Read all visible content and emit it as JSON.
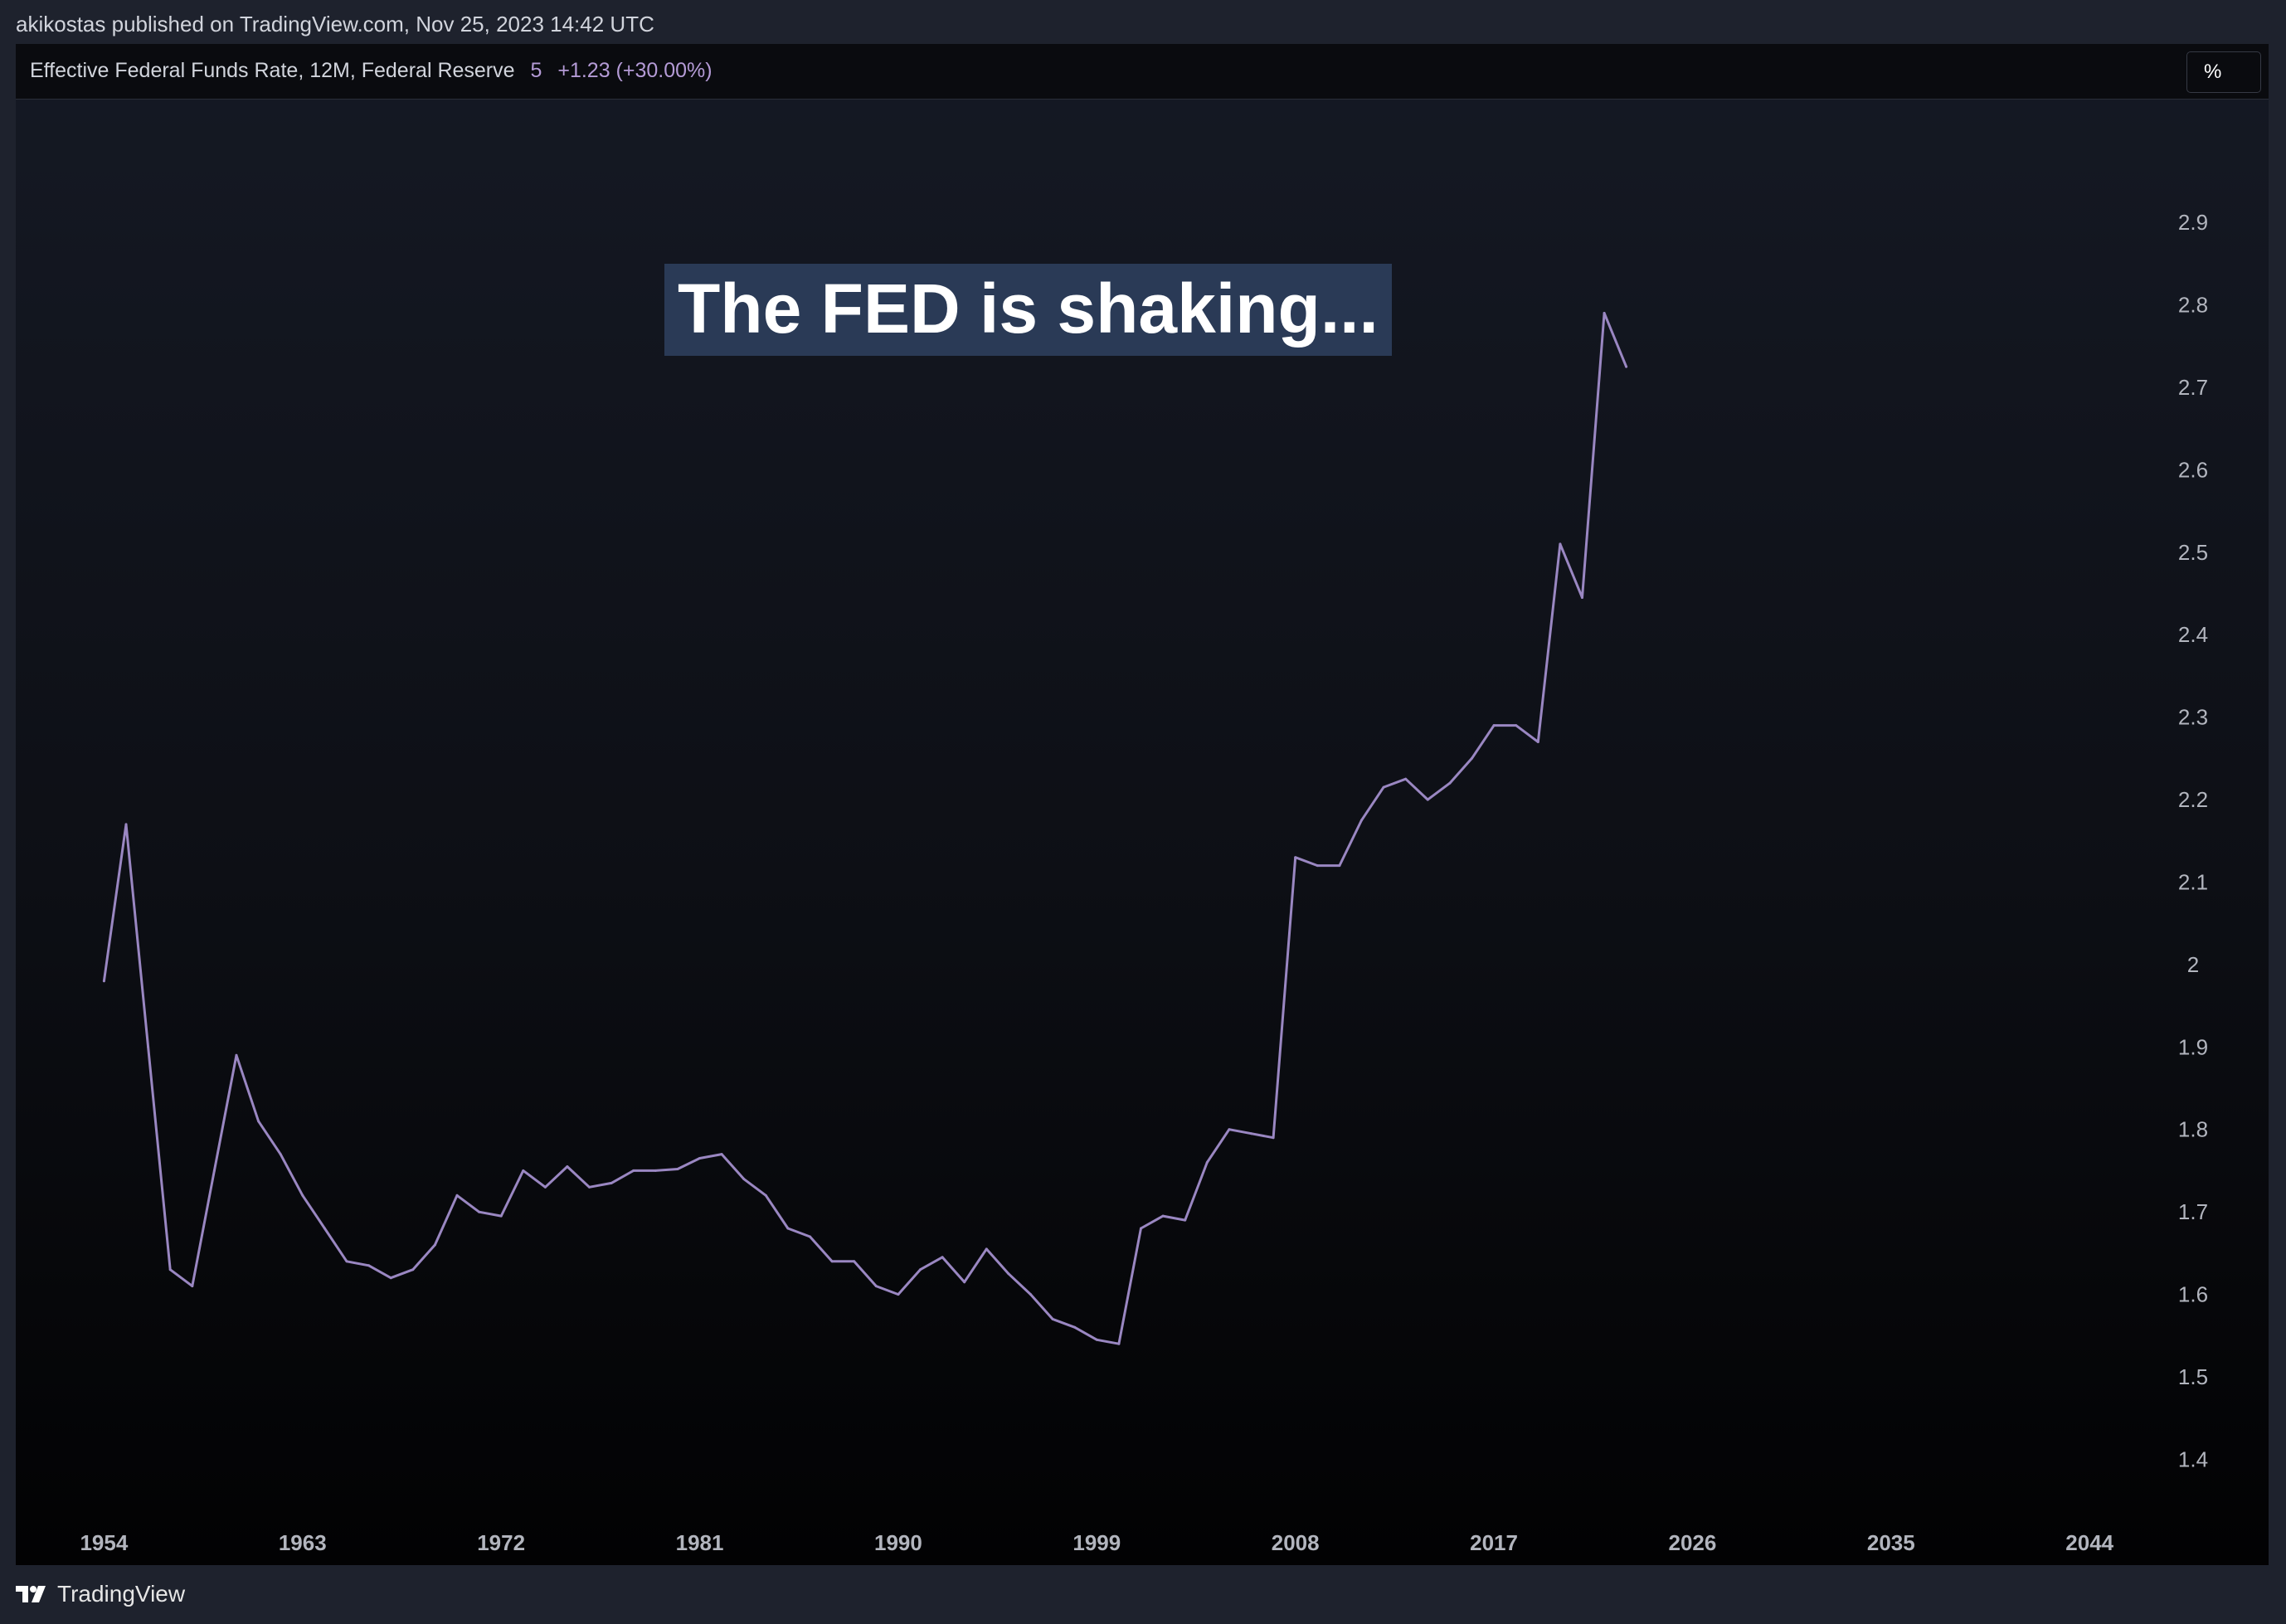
{
  "header": {
    "publish_line": "akikostas published on TradingView.com, Nov 25, 2023 14:42 UTC"
  },
  "legend": {
    "title": "Effective Federal Funds Rate, 12M, Federal Reserve",
    "value": "5",
    "change": "+1.23 (+30.00%)",
    "scale_button": "%"
  },
  "annotation": "The FED is shaking...",
  "footer": {
    "brand": "TradingView",
    "logo_icon": "tradingview-logo-icon"
  },
  "colors": {
    "line": "#9a87c2",
    "background": "#1e222d",
    "annotation_bg": "#2a3a56"
  },
  "chart_data": {
    "type": "line",
    "ylim": [
      1.33,
      3.05
    ],
    "xlim": [
      1950,
      2047
    ],
    "yticks": [
      "2.9",
      "2.8",
      "2.7",
      "2.6",
      "2.5",
      "2.4",
      "2.3",
      "2.2",
      "2.1",
      "2",
      "1.9",
      "1.8",
      "1.7",
      "1.6",
      "1.5",
      "1.4"
    ],
    "xticks": [
      "1954",
      "1963",
      "1972",
      "1981",
      "1990",
      "1999",
      "2008",
      "2017",
      "2026",
      "2035",
      "2044"
    ],
    "grid": false,
    "series": [
      {
        "x": [
          1954,
          1955,
          1956,
          1957,
          1958,
          1959,
          1960,
          1961,
          1962,
          1963,
          1964,
          1965,
          1966,
          1967,
          1968,
          1969,
          1970,
          1971,
          1972,
          1973,
          1974,
          1975,
          1976,
          1977,
          1978,
          1979,
          1980,
          1981,
          1982,
          1983,
          1984,
          1985,
          1986,
          1987,
          1988,
          1989,
          1990,
          1991,
          1992,
          1993,
          1994,
          1995,
          1996,
          1997,
          1998,
          1999,
          2000,
          2001,
          2002,
          2003,
          2004,
          2005,
          2006,
          2007,
          2008,
          2009,
          2010,
          2011,
          2012,
          2013,
          2014,
          2015,
          2016,
          2017,
          2018,
          2019,
          2020,
          2021,
          2022,
          2023
        ],
        "values": [
          1.98,
          2.17,
          1.9,
          1.63,
          1.61,
          1.75,
          1.89,
          1.81,
          1.77,
          1.72,
          1.68,
          1.64,
          1.635,
          1.62,
          1.63,
          1.66,
          1.72,
          1.7,
          1.695,
          1.75,
          1.73,
          1.755,
          1.73,
          1.735,
          1.75,
          1.75,
          1.752,
          1.765,
          1.77,
          1.74,
          1.72,
          1.68,
          1.67,
          1.64,
          1.64,
          1.61,
          1.6,
          1.63,
          1.645,
          1.615,
          1.655,
          1.625,
          1.6,
          1.57,
          1.56,
          1.545,
          1.54,
          1.68,
          1.695,
          1.69,
          1.76,
          1.8,
          1.795,
          1.79,
          2.13,
          2.12,
          2.12,
          2.175,
          2.215,
          2.225,
          2.2,
          2.22,
          2.25,
          2.29,
          2.29,
          2.27,
          2.51,
          2.445,
          2.79,
          2.725
        ]
      }
    ]
  }
}
